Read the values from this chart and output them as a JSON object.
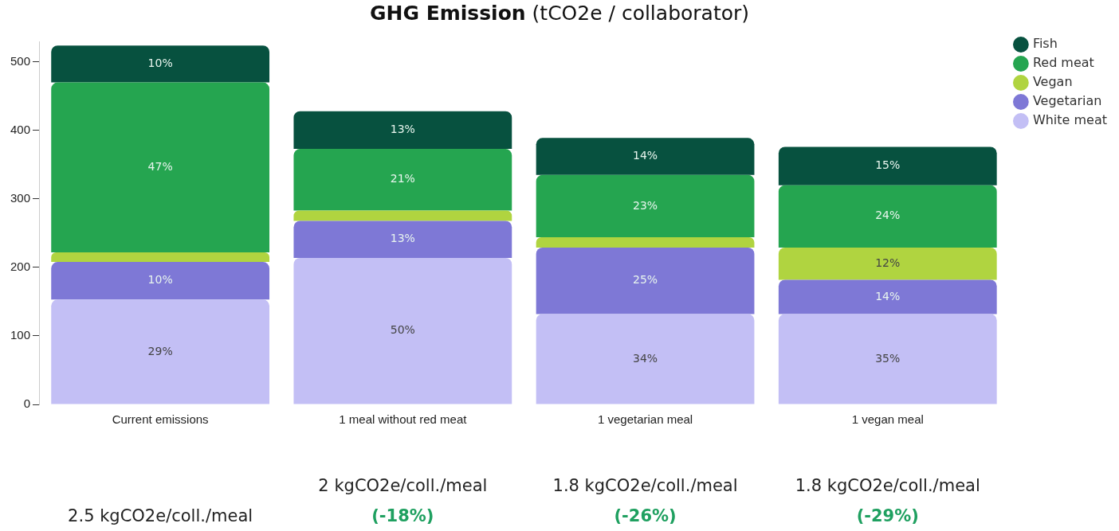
{
  "chart_data": {
    "type": "bar",
    "title": "GHG Emission",
    "subtitle": "(tCO2e / collaborator)",
    "stacked": true,
    "legend": "top right",
    "grid": false,
    "categories": [
      "Current emissions",
      "1 meal without red meat",
      "1 vegetarian meal",
      "1 vegan meal"
    ],
    "ylim": [
      0,
      530
    ],
    "yticks": [
      0,
      100,
      200,
      300,
      400,
      500
    ],
    "series": [
      {
        "name": "White meat",
        "color": "#c3bff5",
        "values": [
          153,
          214,
          132,
          132
        ]
      },
      {
        "name": "Vegetarian",
        "color": "#7e78d6",
        "values": [
          55,
          54,
          97,
          50
        ]
      },
      {
        "name": "Vegan",
        "color": "#b0d440",
        "values": [
          14,
          15,
          15,
          47
        ]
      },
      {
        "name": "Red meat",
        "color": "#25a550",
        "values": [
          248,
          90,
          91,
          91
        ]
      },
      {
        "name": "Fish",
        "color": "#07513f",
        "values": [
          54,
          55,
          54,
          56
        ]
      }
    ],
    "annotations": [
      "2.5 kgCO2e/coll./meal",
      "2 kgCO2e/coll./meal (-18%)",
      "1.8 kgCO2e/coll./meal (-26%)",
      "1.8 kgCO2e/coll./meal (-29%)",
      "29%",
      "10%",
      "47%",
      "10%",
      "50%",
      "13%",
      "21%",
      "13%",
      "34%",
      "25%",
      "23%",
      "14%",
      "35%",
      "14%",
      "12%",
      "24%",
      "15%"
    ]
  }
}
